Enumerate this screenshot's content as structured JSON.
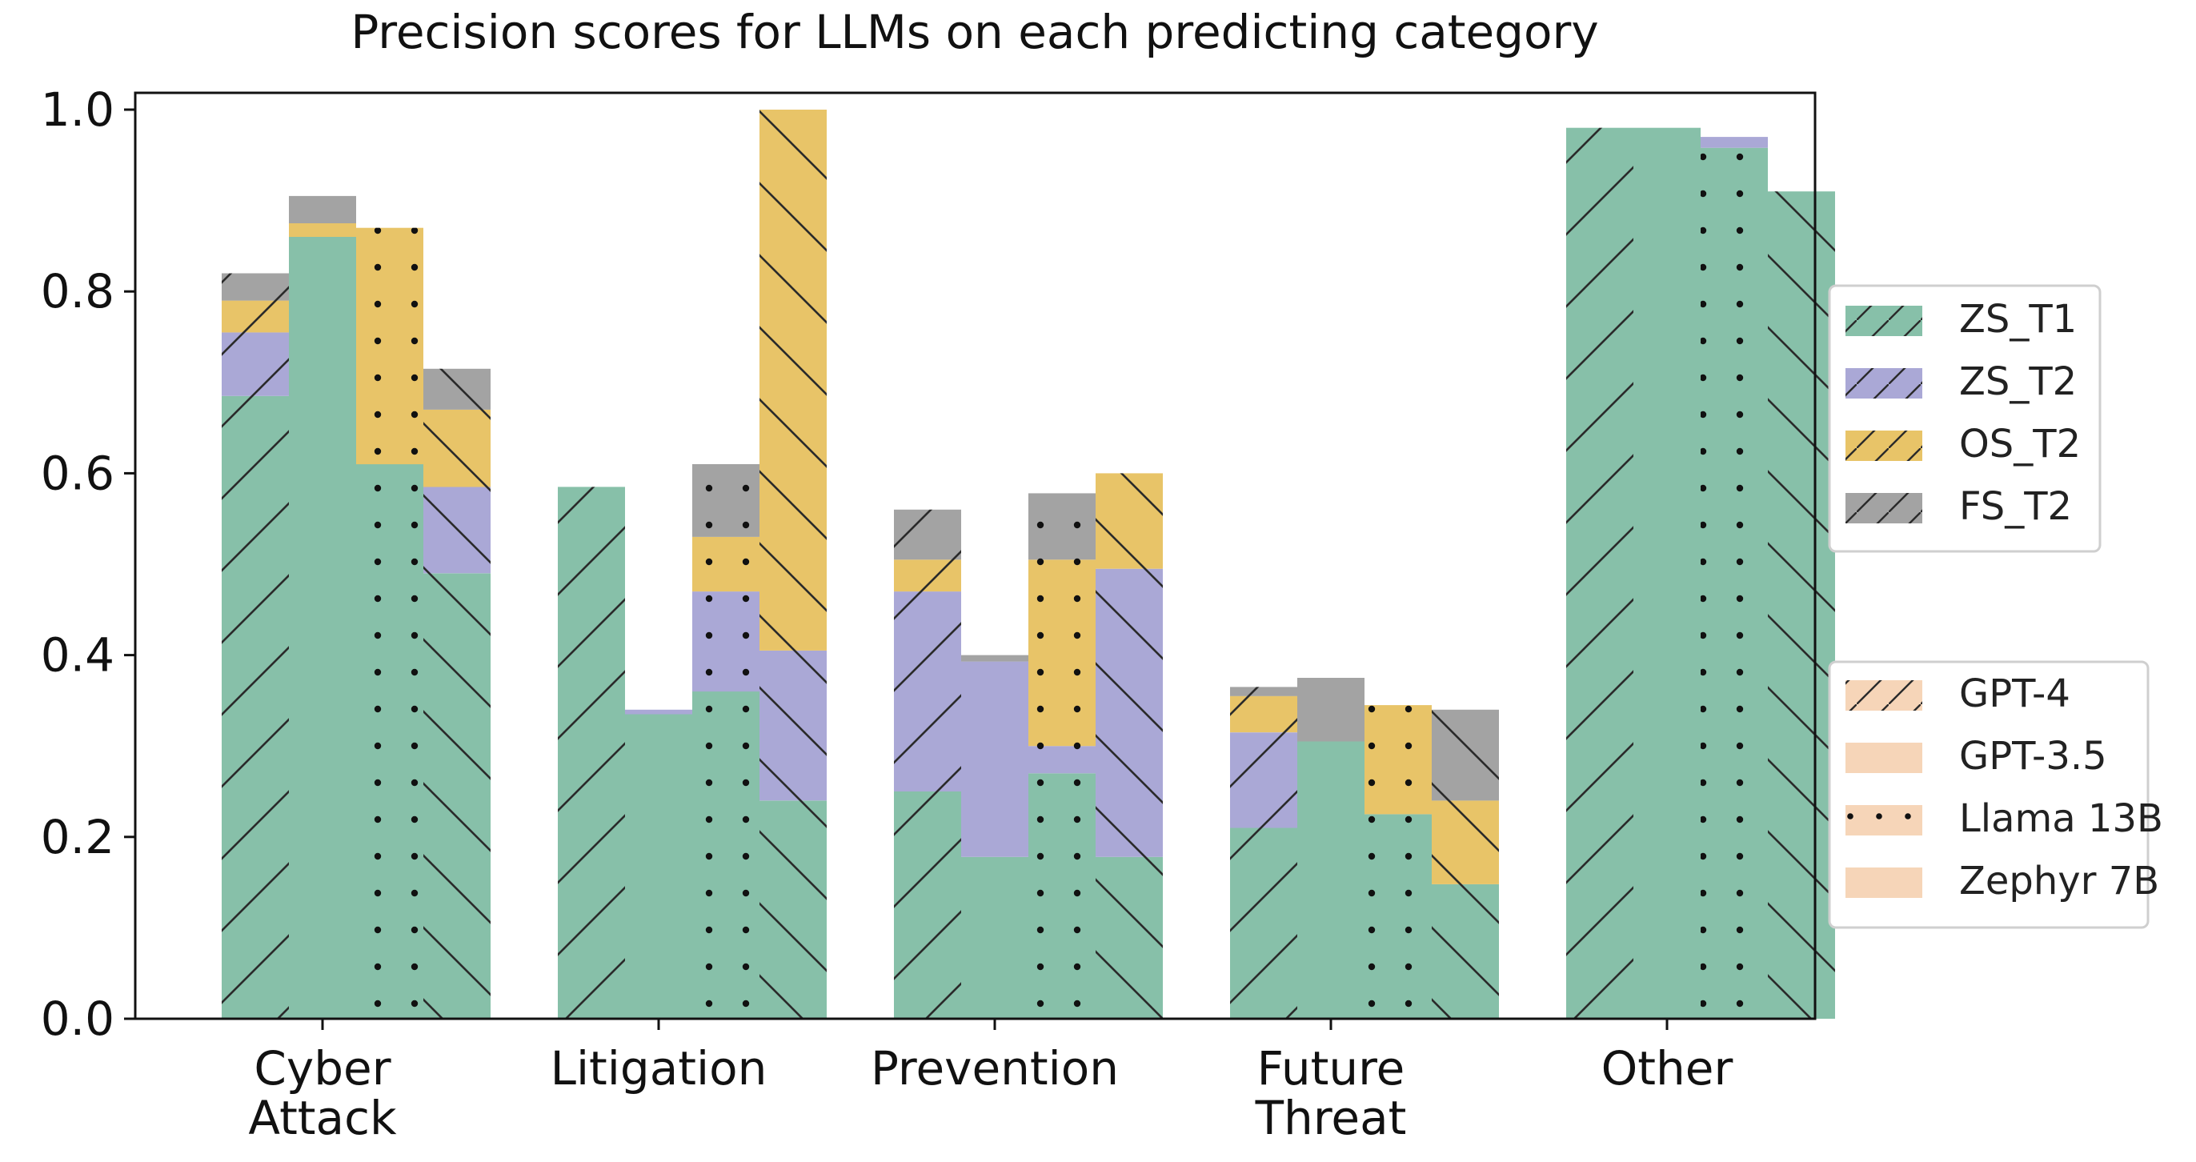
{
  "chart_data": {
    "type": "bar",
    "title": "Precision scores for LLMs on each predicting category",
    "categories": [
      "Cyber\nAttack",
      "Litigation",
      "Prevention",
      "Future\nThreat",
      "Other"
    ],
    "ylim": [
      0,
      1.0
    ],
    "yticks": [
      "0.0",
      "0.2",
      "0.4",
      "0.6",
      "0.8",
      "1.0"
    ],
    "ytick_values": [
      0,
      0.2,
      0.4,
      0.6,
      0.8,
      1.0
    ],
    "models": [
      "GPT-4",
      "GPT-3.5",
      "Llama 13B",
      "Zephyr 7B"
    ],
    "model_hatches": [
      "slash",
      "none",
      "dots",
      "backslash"
    ],
    "series": [
      {
        "name": "ZS_T1",
        "color": "#87c0a9",
        "values": [
          [
            0.685,
            0.86,
            0.61,
            0.49
          ],
          [
            0.585,
            0.335,
            0.36,
            0.24
          ],
          [
            0.25,
            0.178,
            0.27,
            0.178
          ],
          [
            0.21,
            0.305,
            0.225,
            0.148
          ],
          [
            0.98,
            0.98,
            0.958,
            0.91
          ]
        ]
      },
      {
        "name": "ZS_T2",
        "color": "#aaa8d6",
        "values": [
          [
            0.755,
            0.86,
            0.61,
            0.585
          ],
          [
            0.585,
            0.34,
            0.47,
            0.405
          ],
          [
            0.47,
            0.393,
            0.3,
            0.495
          ],
          [
            0.315,
            0.305,
            0.225,
            0.148
          ],
          [
            0.98,
            0.98,
            0.97,
            0.91
          ]
        ]
      },
      {
        "name": "OS_T2",
        "color": "#e8c468",
        "values": [
          [
            0.79,
            0.875,
            0.87,
            0.67
          ],
          [
            0.585,
            0.34,
            0.53,
            1.0
          ],
          [
            0.505,
            0.393,
            0.505,
            0.6
          ],
          [
            0.355,
            0.305,
            0.345,
            0.24
          ],
          [
            0.98,
            0.98,
            0.97,
            0.91
          ]
        ]
      },
      {
        "name": "FS_T2",
        "color": "#a3a3a3",
        "values": [
          [
            0.82,
            0.905,
            0.87,
            0.715
          ],
          [
            0.585,
            0.34,
            0.61,
            1.0
          ],
          [
            0.56,
            0.4,
            0.578,
            0.6
          ],
          [
            0.365,
            0.375,
            0.345,
            0.34
          ],
          [
            0.98,
            0.98,
            0.97,
            0.91
          ]
        ]
      }
    ],
    "legend_series": [
      "ZS_T1",
      "ZS_T2",
      "OS_T2",
      "FS_T2"
    ],
    "legend_models": [
      "GPT-4",
      "GPT-3.5",
      "Llama 13B",
      "Zephyr 7B"
    ],
    "legend_placement": "right",
    "legend_model_swatch_color": "#f6d5b8"
  }
}
